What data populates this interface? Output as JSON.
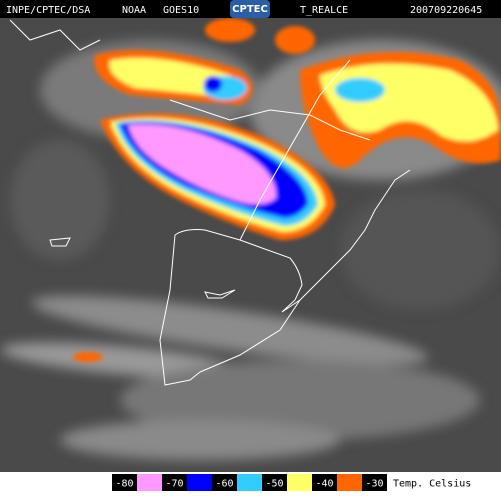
{
  "header": {
    "source": "INPE/CPTEC/DSA",
    "agency": "NOAA",
    "satellite": "GOES10",
    "logo": "CPTEC",
    "product": "T_REALCE",
    "timestamp": "200709220645"
  },
  "legend": {
    "items": [
      {
        "label": -80,
        "color": "#ff99ff"
      },
      {
        "label": -70,
        "color": "#0000ff"
      },
      {
        "label": -60,
        "color": "#33ccff"
      },
      {
        "label": -50,
        "color": "#ffff66"
      },
      {
        "label": -40,
        "color": "#ff6600"
      },
      {
        "label": -30,
        "color": "#ffffff"
      }
    ],
    "unit": "Temp. Celsius"
  }
}
